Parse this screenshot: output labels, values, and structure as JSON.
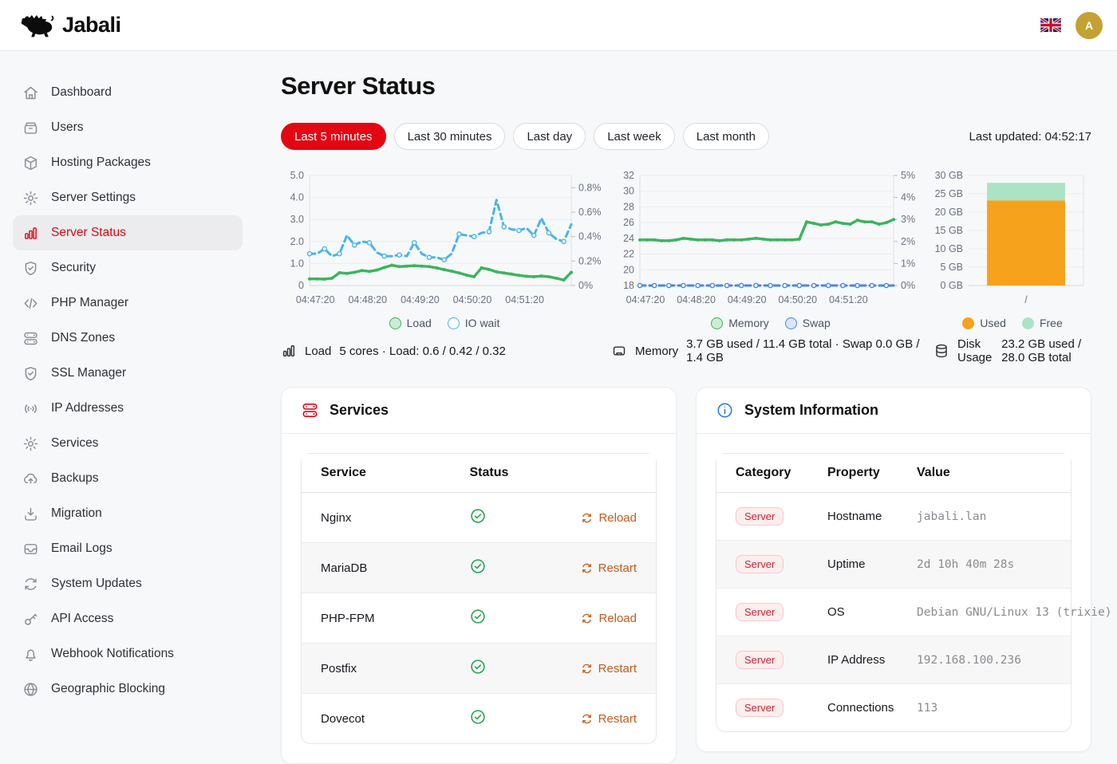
{
  "header": {
    "brand": "Jabali",
    "logo_icon": "boar-logo-icon",
    "language_flag": "uk-flag-icon",
    "avatar_initial": "A"
  },
  "sidebar": {
    "items": [
      {
        "label": "Dashboard",
        "icon": "home-icon",
        "active": false
      },
      {
        "label": "Users",
        "icon": "users-box-icon",
        "active": false
      },
      {
        "label": "Hosting Packages",
        "icon": "package-icon",
        "active": false
      },
      {
        "label": "Server Settings",
        "icon": "gear-icon",
        "active": false
      },
      {
        "label": "Server Status",
        "icon": "bar-chart-icon",
        "active": true
      },
      {
        "label": "Security",
        "icon": "shield-check-icon",
        "active": false
      },
      {
        "label": "PHP Manager",
        "icon": "code-icon",
        "active": false
      },
      {
        "label": "DNS Zones",
        "icon": "server-stack-icon",
        "active": false
      },
      {
        "label": "SSL Manager",
        "icon": "shield-check-icon",
        "active": false
      },
      {
        "label": "IP Addresses",
        "icon": "broadcast-icon",
        "active": false
      },
      {
        "label": "Services",
        "icon": "gear-icon",
        "active": false
      },
      {
        "label": "Backups",
        "icon": "cloud-upload-icon",
        "active": false
      },
      {
        "label": "Migration",
        "icon": "download-tray-icon",
        "active": false
      },
      {
        "label": "Email Logs",
        "icon": "inbox-icon",
        "active": false
      },
      {
        "label": "System Updates",
        "icon": "refresh-icon",
        "active": false
      },
      {
        "label": "API Access",
        "icon": "key-icon",
        "active": false
      },
      {
        "label": "Webhook Notifications",
        "icon": "bell-icon",
        "active": false
      },
      {
        "label": "Geographic Blocking",
        "icon": "globe-icon",
        "active": false
      }
    ]
  },
  "page": {
    "title": "Server Status",
    "last_updated": "Last updated: 04:52:17"
  },
  "time_filters": [
    {
      "label": "Last 5 minutes",
      "active": true
    },
    {
      "label": "Last 30 minutes",
      "active": false
    },
    {
      "label": "Last day",
      "active": false
    },
    {
      "label": "Last week",
      "active": false
    },
    {
      "label": "Last month",
      "active": false
    }
  ],
  "colors": {
    "accent_red": "#e30613",
    "load_green": "#3cb45e",
    "io_blue": "#47b5ea",
    "swap_blue": "#4a86e8",
    "disk_used_orange": "#f6a21c",
    "disk_free_green": "#abe3c4",
    "action_orange": "#c45c1c",
    "ok_green": "#22a44c",
    "badge_red": "#cf2433",
    "avatar_gold": "#c3a233"
  },
  "chart_data": [
    {
      "type": "line",
      "name": "load",
      "x_labels": [
        "04:47:20",
        "04:48:20",
        "04:49:20",
        "04:50:20",
        "04:51:20"
      ],
      "left_axis": {
        "min": 0,
        "max": 5,
        "ticks": [
          0,
          1,
          2,
          3,
          4,
          5
        ],
        "tick_labels": [
          "0",
          "1.0",
          "2.0",
          "3.0",
          "4.0",
          "5.0"
        ]
      },
      "right_axis": {
        "min": 0,
        "max": 0.9,
        "ticks": [
          0,
          0.2,
          0.4,
          0.6,
          0.8
        ],
        "tick_labels": [
          "0%",
          "0.2%",
          "0.4%",
          "0.6%",
          "0.8%"
        ]
      },
      "series": [
        {
          "name": "Load",
          "axis": "left",
          "color": "#3cb45e",
          "style": "solid",
          "marker": "filled",
          "values": [
            0.3,
            0.3,
            0.29,
            0.33,
            0.58,
            0.55,
            0.6,
            0.68,
            0.64,
            0.7,
            0.82,
            0.92,
            0.86,
            0.88,
            0.9,
            0.88,
            0.86,
            0.8,
            0.72,
            0.65,
            0.57,
            0.47,
            0.4,
            0.8,
            0.73,
            0.62,
            0.57,
            0.52,
            0.46,
            0.42,
            0.4,
            0.43,
            0.4,
            0.33,
            0.25,
            0.6
          ]
        },
        {
          "name": "IO wait",
          "axis": "right",
          "color": "#47b5ea",
          "style": "dashed",
          "marker": "open",
          "values": [
            0.26,
            0.26,
            0.3,
            0.24,
            0.26,
            0.41,
            0.33,
            0.36,
            0.35,
            0.27,
            0.24,
            0.24,
            0.25,
            0.24,
            0.35,
            0.26,
            0.23,
            0.23,
            0.21,
            0.26,
            0.42,
            0.41,
            0.4,
            0.43,
            0.44,
            0.7,
            0.48,
            0.46,
            0.45,
            0.47,
            0.41,
            0.55,
            0.43,
            0.38,
            0.36,
            0.5
          ]
        }
      ],
      "legend": [
        {
          "label": "Load",
          "fill": "#cdecd7",
          "border": "#3cb45e"
        },
        {
          "label": "IO wait",
          "fill": "#ffffff",
          "border": "#47b5ea"
        }
      ]
    },
    {
      "type": "line",
      "name": "memory",
      "x_labels": [
        "04:47:20",
        "04:48:20",
        "04:49:20",
        "04:50:20",
        "04:51:20"
      ],
      "left_axis": {
        "min": 18,
        "max": 32,
        "ticks": [
          18,
          20,
          22,
          24,
          26,
          28,
          30,
          32
        ],
        "tick_labels": [
          "18",
          "20",
          "22",
          "24",
          "26",
          "28",
          "30",
          "32"
        ]
      },
      "right_axis": {
        "min": 0,
        "max": 5,
        "ticks": [
          0,
          1,
          2,
          3,
          4,
          5
        ],
        "tick_labels": [
          "0%",
          "1%",
          "2%",
          "3%",
          "4%",
          "5%"
        ]
      },
      "series": [
        {
          "name": "Memory",
          "axis": "left",
          "color": "#3cb45e",
          "style": "solid",
          "marker": "filled",
          "values": [
            23.8,
            23.8,
            23.8,
            23.7,
            23.7,
            23.8,
            24.0,
            23.9,
            23.8,
            23.8,
            23.8,
            23.7,
            23.8,
            23.8,
            23.8,
            23.9,
            24.0,
            23.9,
            23.8,
            23.8,
            23.8,
            23.8,
            23.9,
            26.1,
            25.9,
            25.7,
            25.8,
            26.1,
            25.9,
            25.8,
            26.3,
            26.1,
            26.1,
            25.8,
            26.0,
            26.4
          ]
        },
        {
          "name": "Swap",
          "axis": "right",
          "color": "#4a86e8",
          "style": "dashed",
          "marker": "open",
          "values": [
            0,
            0,
            0,
            0,
            0,
            0,
            0,
            0,
            0,
            0,
            0,
            0,
            0,
            0,
            0,
            0,
            0,
            0,
            0,
            0,
            0,
            0,
            0,
            0,
            0,
            0,
            0,
            0,
            0,
            0,
            0,
            0,
            0,
            0,
            0,
            0
          ]
        }
      ],
      "legend": [
        {
          "label": "Memory",
          "fill": "#cdecd7",
          "border": "#3cb45e"
        },
        {
          "label": "Swap",
          "fill": "#d9e6fb",
          "border": "#4a86e8"
        }
      ]
    },
    {
      "type": "stacked-bar",
      "name": "disk",
      "categories": [
        "/"
      ],
      "y_axis": {
        "min": 0,
        "max": 30,
        "ticks": [
          0,
          5,
          10,
          15,
          20,
          25,
          30
        ],
        "tick_labels": [
          "0 GB",
          "5 GB",
          "10 GB",
          "15 GB",
          "20 GB",
          "25 GB",
          "30 GB"
        ]
      },
      "series": [
        {
          "name": "Used",
          "color": "#f6a21c",
          "values": [
            23.2
          ]
        },
        {
          "name": "Free",
          "color": "#abe3c4",
          "values": [
            4.8
          ]
        }
      ],
      "legend": [
        {
          "label": "Used",
          "fill": "#f6a21c",
          "border": "#f6a21c"
        },
        {
          "label": "Free",
          "fill": "#abe3c4",
          "border": "#abe3c4"
        }
      ]
    }
  ],
  "stats": [
    {
      "icon": "bar-chart-icon",
      "label": "Load",
      "value": "5 cores · Load: 0.6 / 0.42 / 0.32"
    },
    {
      "icon": "memory-icon",
      "label": "Memory",
      "value": "3.7 GB used / 11.4 GB total · Swap 0.0 GB / 1.4 GB"
    },
    {
      "icon": "database-icon",
      "label": "Disk Usage",
      "value": "23.2 GB used / 28.0 GB total"
    }
  ],
  "services_card": {
    "title": "Services",
    "icon": "server-stack-icon",
    "columns": [
      "Service",
      "Status",
      ""
    ],
    "rows": [
      {
        "service": "Nginx",
        "status": "running",
        "action": "Reload"
      },
      {
        "service": "MariaDB",
        "status": "running",
        "action": "Restart"
      },
      {
        "service": "PHP-FPM",
        "status": "running",
        "action": "Reload"
      },
      {
        "service": "Postfix",
        "status": "running",
        "action": "Restart"
      },
      {
        "service": "Dovecot",
        "status": "running",
        "action": "Restart"
      }
    ]
  },
  "system_card": {
    "title": "System Information",
    "icon": "info-icon",
    "columns": [
      "Category",
      "Property",
      "Value"
    ],
    "rows": [
      {
        "category": "Server",
        "property": "Hostname",
        "value": "jabali.lan"
      },
      {
        "category": "Server",
        "property": "Uptime",
        "value": "2d 10h 40m 28s"
      },
      {
        "category": "Server",
        "property": "OS",
        "value": "Debian GNU/Linux 13 (trixie)"
      },
      {
        "category": "Server",
        "property": "IP Address",
        "value": "192.168.100.236"
      },
      {
        "category": "Server",
        "property": "Connections",
        "value": "113"
      }
    ]
  }
}
